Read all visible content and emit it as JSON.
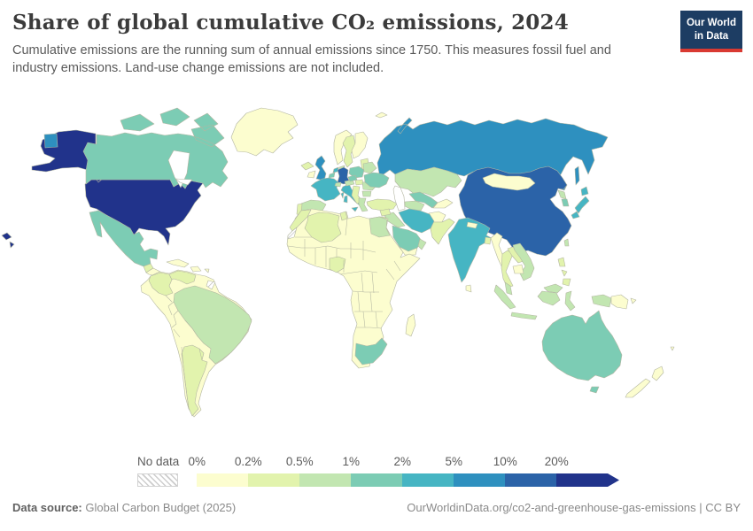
{
  "header": {
    "title": "Share of global cumulative CO₂ emissions, 2024",
    "subtitle": "Cumulative emissions are the running sum of annual emissions since 1750. This measures fossil fuel and industry emissions. Land-use change emissions are not included."
  },
  "logo": {
    "line1": "Our World",
    "line2": "in Data"
  },
  "brand": {
    "navy": "#1d3d63",
    "red": "#d93a32"
  },
  "footer": {
    "source_label": "Data source:",
    "source": "Global Carbon Budget (2025)",
    "link": "OurWorldinData.org/co2-and-greenhouse-gas-emissions",
    "license_suffix": " | CC BY"
  },
  "chart_data": {
    "type": "choropleth-map",
    "title": "Share of global cumulative CO₂ emissions, 2024",
    "year": "2024",
    "unit": "%",
    "legend": {
      "no_data_label": "No data",
      "thresholds": [
        "0%",
        "0.2%",
        "0.5%",
        "1%",
        "2%",
        "5%",
        "10%",
        "20%"
      ],
      "colors": [
        "#fcfdcf",
        "#e2f3ad",
        "#c2e6b1",
        "#7cccb4",
        "#46b5c3",
        "#2e90bf",
        "#2b63a8",
        "#21338b"
      ],
      "no_data_pattern": "gray-diagonal-hatch"
    },
    "regions": [
      {
        "id": "united-states",
        "name": "United States",
        "bin": 7
      },
      {
        "id": "canada",
        "name": "Canada",
        "bin": 3
      },
      {
        "id": "greenland",
        "name": "Greenland",
        "bin": 0
      },
      {
        "id": "arctic-islands",
        "name": "Svalbard",
        "bin": 0
      },
      {
        "id": "iceland",
        "name": "Iceland",
        "bin": 1
      },
      {
        "id": "mexico",
        "name": "Mexico",
        "bin": 3
      },
      {
        "id": "guatemala",
        "name": "Guatemala",
        "bin": 1
      },
      {
        "id": "central-america",
        "name": "Central America",
        "bin": 0
      },
      {
        "id": "cuba",
        "name": "Cuba",
        "bin": 0
      },
      {
        "id": "hispaniola",
        "name": "Hispaniola",
        "bin": 0
      },
      {
        "id": "puerto-rico",
        "name": "Puerto Rico",
        "bin": 0
      },
      {
        "id": "colombia",
        "name": "Colombia",
        "bin": 1
      },
      {
        "id": "venezuela",
        "name": "Venezuela",
        "bin": 1
      },
      {
        "id": "french-guiana",
        "name": "French Guiana",
        "bin": "no-data"
      },
      {
        "id": "brazil",
        "name": "Brazil",
        "bin": 2
      },
      {
        "id": "argentina",
        "name": "Argentina",
        "bin": 1
      },
      {
        "id": "south-america-other",
        "name": "Other South America",
        "bin": 0
      },
      {
        "id": "united-kingdom",
        "name": "United Kingdom",
        "bin": 5
      },
      {
        "id": "ireland",
        "name": "Ireland",
        "bin": 0
      },
      {
        "id": "norway",
        "name": "Norway",
        "bin": 0
      },
      {
        "id": "sweden",
        "name": "Sweden",
        "bin": 1
      },
      {
        "id": "finland",
        "name": "Finland",
        "bin": 0
      },
      {
        "id": "denmark",
        "name": "Denmark",
        "bin": 2
      },
      {
        "id": "baltics",
        "name": "Baltic states",
        "bin": 1
      },
      {
        "id": "germany",
        "name": "Germany",
        "bin": 6
      },
      {
        "id": "netherlands",
        "name": "Netherlands",
        "bin": 4
      },
      {
        "id": "belgium",
        "name": "Belgium",
        "bin": 3
      },
      {
        "id": "france",
        "name": "France",
        "bin": 4
      },
      {
        "id": "spain",
        "name": "Spain",
        "bin": 2
      },
      {
        "id": "portugal",
        "name": "Portugal",
        "bin": 1
      },
      {
        "id": "italy",
        "name": "Italy",
        "bin": 4
      },
      {
        "id": "switzerland",
        "name": "Switzerland",
        "bin": 2
      },
      {
        "id": "austria",
        "name": "Austria",
        "bin": 2
      },
      {
        "id": "czechia",
        "name": "Czechia",
        "bin": 3
      },
      {
        "id": "poland",
        "name": "Poland",
        "bin": 3
      },
      {
        "id": "hungary",
        "name": "Hungary",
        "bin": 1
      },
      {
        "id": "balkans",
        "name": "Western Balkans",
        "bin": 1
      },
      {
        "id": "romania",
        "name": "Romania",
        "bin": 2
      },
      {
        "id": "bulgaria",
        "name": "Bulgaria",
        "bin": 2
      },
      {
        "id": "greece",
        "name": "Greece",
        "bin": 2
      },
      {
        "id": "belarus",
        "name": "Belarus",
        "bin": 2
      },
      {
        "id": "ukraine",
        "name": "Ukraine",
        "bin": 3
      },
      {
        "id": "turkey",
        "name": "Turkey",
        "bin": 1
      },
      {
        "id": "russia",
        "name": "Russia",
        "bin": 5
      },
      {
        "id": "kazakhstan",
        "name": "Kazakhstan",
        "bin": 2
      },
      {
        "id": "uzbekistan",
        "name": "Uzbekistan",
        "bin": 3
      },
      {
        "id": "turkmenistan",
        "name": "Turkmenistan",
        "bin": 2
      },
      {
        "id": "kyrgyzstan-tajikistan",
        "name": "Kyrgyzstan and Tajikistan",
        "bin": 0
      },
      {
        "id": "china",
        "name": "China",
        "bin": 6
      },
      {
        "id": "mongolia",
        "name": "Mongolia",
        "bin": 0
      },
      {
        "id": "north-korea",
        "name": "North Korea",
        "bin": 2
      },
      {
        "id": "south-korea",
        "name": "South Korea",
        "bin": 3
      },
      {
        "id": "japan",
        "name": "Japan",
        "bin": 4
      },
      {
        "id": "taiwan",
        "name": "Taiwan",
        "bin": 2
      },
      {
        "id": "india",
        "name": "India",
        "bin": 4
      },
      {
        "id": "nepal",
        "name": "Nepal",
        "bin": 0
      },
      {
        "id": "bangladesh",
        "name": "Bangladesh",
        "bin": 1
      },
      {
        "id": "sri-lanka",
        "name": "Sri Lanka",
        "bin": 0
      },
      {
        "id": "afghanistan",
        "name": "Afghanistan",
        "bin": 0
      },
      {
        "id": "pakistan",
        "name": "Pakistan",
        "bin": 1
      },
      {
        "id": "iran",
        "name": "Iran",
        "bin": 4
      },
      {
        "id": "iraq",
        "name": "Iraq",
        "bin": 2
      },
      {
        "id": "syria",
        "name": "Syria",
        "bin": 1
      },
      {
        "id": "israel-jordan",
        "name": "Israel and Jordan",
        "bin": 1
      },
      {
        "id": "saudi-arabia",
        "name": "Saudi Arabia",
        "bin": 3
      },
      {
        "id": "yemen",
        "name": "Yemen",
        "bin": 0
      },
      {
        "id": "oman",
        "name": "Oman",
        "bin": 2
      },
      {
        "id": "myanmar",
        "name": "Myanmar",
        "bin": 0
      },
      {
        "id": "thailand",
        "name": "Thailand",
        "bin": 1
      },
      {
        "id": "laos",
        "name": "Laos",
        "bin": 1
      },
      {
        "id": "vietnam",
        "name": "Vietnam",
        "bin": 2
      },
      {
        "id": "cambodia",
        "name": "Cambodia",
        "bin": 0
      },
      {
        "id": "malaysia",
        "name": "Malaysia",
        "bin": 2
      },
      {
        "id": "indonesia",
        "name": "Indonesia",
        "bin": 2
      },
      {
        "id": "philippines",
        "name": "Philippines",
        "bin": 1
      },
      {
        "id": "papua-new-guinea",
        "name": "Papua New Guinea",
        "bin": 0
      },
      {
        "id": "australia",
        "name": "Australia",
        "bin": 3
      },
      {
        "id": "new-zealand",
        "name": "New Zealand",
        "bin": 0
      },
      {
        "id": "fiji",
        "name": "Fiji",
        "bin": 0
      },
      {
        "id": "morocco",
        "name": "Morocco",
        "bin": 1
      },
      {
        "id": "western-sahara",
        "name": "Western Sahara",
        "bin": "no-data"
      },
      {
        "id": "algeria",
        "name": "Algeria",
        "bin": 1
      },
      {
        "id": "tunisia",
        "name": "Tunisia",
        "bin": 1
      },
      {
        "id": "egypt",
        "name": "Egypt",
        "bin": 2
      },
      {
        "id": "nigeria",
        "name": "Nigeria",
        "bin": 1
      },
      {
        "id": "south-africa",
        "name": "South Africa",
        "bin": 3
      },
      {
        "id": "madagascar",
        "name": "Madagascar",
        "bin": 0
      },
      {
        "id": "africa-other",
        "name": "Other Africa",
        "bin": 0
      }
    ]
  }
}
